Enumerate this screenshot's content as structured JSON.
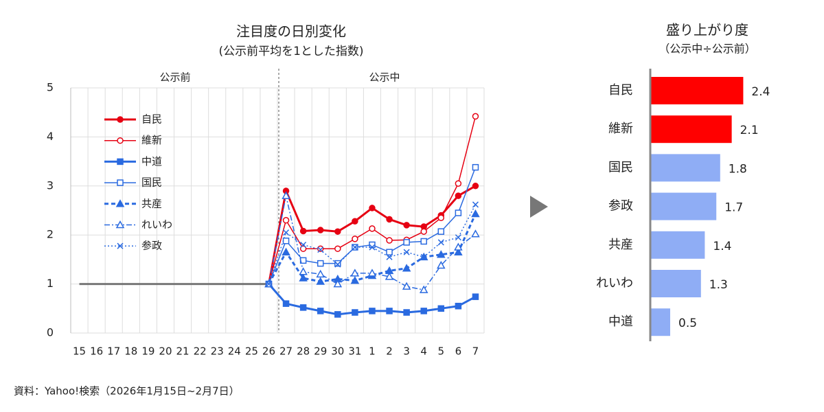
{
  "chart_data": [
    {
      "type": "line",
      "title": "注目度の日別変化",
      "subtitle": "(公示前平均を1とした指数)",
      "annotations": [
        "公示前",
        "公示中"
      ],
      "categories": [
        "15",
        "16",
        "17",
        "18",
        "19",
        "20",
        "21",
        "22",
        "23",
        "24",
        "25",
        "26",
        "27",
        "28",
        "29",
        "30",
        "31",
        "1",
        "2",
        "3",
        "4",
        "5",
        "6",
        "7"
      ],
      "ylim": [
        0,
        5
      ],
      "yticks": [
        0,
        1,
        2,
        3,
        4,
        5
      ],
      "grid": true,
      "legend": "upper left",
      "series": [
        {
          "color": "#777777",
          "marker": "none",
          "dash": "solid",
          "values": [
            1,
            1,
            1,
            1,
            1,
            1,
            1,
            1,
            1,
            1,
            1,
            1,
            null,
            null,
            null,
            null,
            null,
            null,
            null,
            null,
            null,
            null,
            null,
            null
          ]
        },
        {
          "name": "自民",
          "color": "#e60012",
          "marker": "circle",
          "dash": "solid",
          "values": [
            null,
            null,
            null,
            null,
            null,
            null,
            null,
            null,
            null,
            null,
            null,
            1,
            2.9,
            2.08,
            2.1,
            2.07,
            2.28,
            2.55,
            2.32,
            2.2,
            2.17,
            2.4,
            2.8,
            3.0
          ]
        },
        {
          "name": "維新",
          "color": "#e60012",
          "marker": "circle-open",
          "dash": "solid",
          "values": [
            null,
            null,
            null,
            null,
            null,
            null,
            null,
            null,
            null,
            null,
            null,
            1,
            2.3,
            1.72,
            1.72,
            1.72,
            1.92,
            2.13,
            1.89,
            1.9,
            2.07,
            2.35,
            3.05,
            4.42
          ]
        },
        {
          "name": "中道",
          "color": "#2a6ae0",
          "marker": "square",
          "dash": "solid",
          "values": [
            null,
            null,
            null,
            null,
            null,
            null,
            null,
            null,
            null,
            null,
            null,
            1,
            0.6,
            0.52,
            0.45,
            0.38,
            0.42,
            0.45,
            0.45,
            0.42,
            0.45,
            0.5,
            0.55,
            0.74
          ]
        },
        {
          "name": "国民",
          "color": "#2a6ae0",
          "marker": "square-open",
          "dash": "solid",
          "values": [
            null,
            null,
            null,
            null,
            null,
            null,
            null,
            null,
            null,
            null,
            null,
            1,
            1.88,
            1.48,
            1.42,
            1.42,
            1.75,
            1.8,
            1.65,
            1.85,
            1.87,
            2.07,
            2.45,
            3.38
          ]
        },
        {
          "name": "共産",
          "color": "#2a6ae0",
          "marker": "triangle",
          "dash": "dash",
          "values": [
            null,
            null,
            null,
            null,
            null,
            null,
            null,
            null,
            null,
            null,
            null,
            1,
            1.65,
            1.12,
            1.05,
            1.1,
            1.07,
            1.17,
            1.27,
            1.32,
            1.55,
            1.6,
            1.65,
            2.43
          ]
        },
        {
          "name": "れいわ",
          "color": "#2a6ae0",
          "marker": "triangle-open",
          "dash": "dashdot",
          "values": [
            null,
            null,
            null,
            null,
            null,
            null,
            null,
            null,
            null,
            null,
            null,
            1,
            2.8,
            1.25,
            1.2,
            1.0,
            1.22,
            1.22,
            1.15,
            0.95,
            0.88,
            1.38,
            1.75,
            2.02
          ]
        },
        {
          "name": "参政",
          "color": "#2a6ae0",
          "marker": "x",
          "dash": "dot",
          "values": [
            null,
            null,
            null,
            null,
            null,
            null,
            null,
            null,
            null,
            null,
            null,
            1,
            2.05,
            1.8,
            1.7,
            1.4,
            1.75,
            1.75,
            1.55,
            1.65,
            1.55,
            1.85,
            1.95,
            2.62
          ]
        }
      ]
    },
    {
      "type": "bar",
      "orientation": "horizontal",
      "title": "盛り上がり度",
      "subtitle": "（公示中÷公示前）",
      "categories": [
        "自民",
        "維新",
        "国民",
        "参政",
        "共産",
        "れいわ",
        "中道"
      ],
      "values": [
        2.4,
        2.1,
        1.8,
        1.7,
        1.4,
        1.3,
        0.5
      ],
      "colors": [
        "#ff0000",
        "#ff0000",
        "#8fadf5",
        "#8fadf5",
        "#8fadf5",
        "#8fadf5",
        "#8fadf5"
      ]
    }
  ],
  "footer": {
    "source": "資料：Yahoo!検索（2026年1月15日~2月7日）"
  }
}
